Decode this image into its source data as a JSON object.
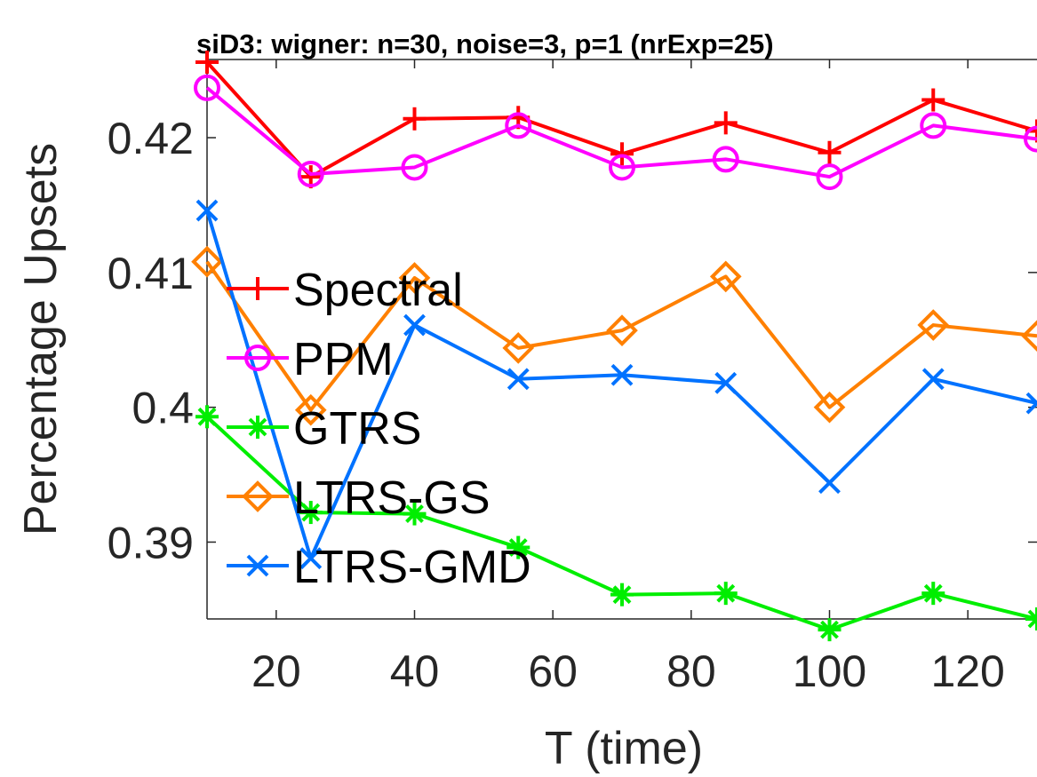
{
  "chart_data": {
    "type": "line",
    "title": "siD3: wigner: n=30, noise=3, p=1 (nrExp=25)",
    "xlabel": "T (time)",
    "ylabel": "Percentage Upsets",
    "x": [
      10,
      25,
      40,
      55,
      70,
      85,
      100,
      115,
      130
    ],
    "xlim": [
      10,
      130
    ],
    "ylim": [
      0.3843,
      0.4258
    ],
    "xticks": [
      20,
      40,
      60,
      80,
      100,
      120
    ],
    "xtick_labels": [
      "20",
      "40",
      "60",
      "80",
      "100",
      "120"
    ],
    "yticks": [
      0.39,
      0.4,
      0.41,
      0.42
    ],
    "ytick_labels": [
      "0.39",
      "0.4",
      "0.41",
      "0.42"
    ],
    "grid": false,
    "legend_position": "center-left",
    "series": [
      {
        "name": "Spectral",
        "color": "#ff0000",
        "marker": "plus",
        "values": [
          0.4256,
          0.4171,
          0.4214,
          0.4215,
          0.4188,
          0.4211,
          0.4189,
          0.4228,
          0.4205
        ]
      },
      {
        "name": "PPM",
        "color": "#ff00ff",
        "marker": "circle",
        "values": [
          0.4237,
          0.4173,
          0.4178,
          0.4209,
          0.4178,
          0.4184,
          0.4171,
          0.4209,
          0.4199
        ]
      },
      {
        "name": "GTRS",
        "color": "#00ee00",
        "marker": "asterisk",
        "values": [
          0.3993,
          0.3922,
          0.3921,
          0.3896,
          0.3861,
          0.3862,
          0.3835,
          0.3862,
          0.3843
        ]
      },
      {
        "name": "LTRS-GS",
        "color": "#ff8000",
        "marker": "diamond",
        "values": [
          0.4108,
          0.3998,
          0.4096,
          0.4044,
          0.4057,
          0.4097,
          0.4,
          0.4061,
          0.4053
        ]
      },
      {
        "name": "LTRS-GMD",
        "color": "#0072ff",
        "marker": "x",
        "values": [
          0.4146,
          0.3888,
          0.4061,
          0.4021,
          0.4024,
          0.4018,
          0.3944,
          0.4021,
          0.4003
        ]
      }
    ]
  }
}
